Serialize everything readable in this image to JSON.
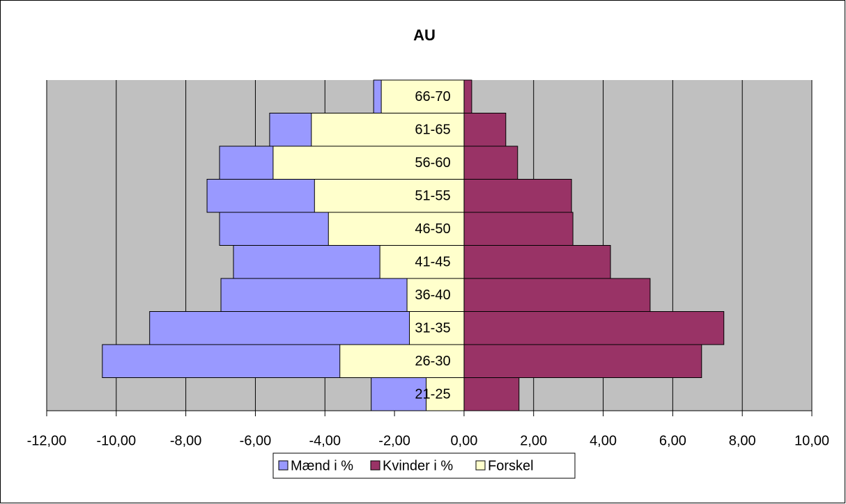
{
  "chart_data": {
    "type": "bar",
    "orientation": "horizontal",
    "title": "AU",
    "categories": [
      "21-25",
      "26-30",
      "31-35",
      "36-40",
      "41-45",
      "46-50",
      "51-55",
      "56-60",
      "61-65",
      "66-70"
    ],
    "series": [
      {
        "name": "Mænd i %",
        "color": "#9999ff",
        "values": [
          -2.67,
          -10.4,
          -9.04,
          -6.99,
          -6.63,
          -7.03,
          -7.39,
          -7.03,
          -5.59,
          -2.6
        ]
      },
      {
        "name": "Kvinder i %",
        "color": "#993366",
        "values": [
          1.58,
          6.83,
          7.47,
          5.35,
          4.21,
          3.13,
          3.09,
          1.54,
          1.2,
          0.22
        ]
      },
      {
        "name": "Forskel",
        "color": "#ffffcc",
        "values": [
          -1.09,
          -3.57,
          -1.57,
          -1.64,
          -2.42,
          -3.9,
          -4.3,
          -5.49,
          -4.39,
          -2.38
        ]
      }
    ],
    "xlim": [
      -12,
      10
    ],
    "xticks": [
      {
        "value": -12,
        "label": "-12,00"
      },
      {
        "value": -10,
        "label": "-10,00"
      },
      {
        "value": -8,
        "label": "-8,00"
      },
      {
        "value": -6,
        "label": "-6,00"
      },
      {
        "value": -4,
        "label": "-4,00"
      },
      {
        "value": -2,
        "label": "-2,00"
      },
      {
        "value": 0,
        "label": "0,00"
      },
      {
        "value": 2,
        "label": "2,00"
      },
      {
        "value": 4,
        "label": "4,00"
      },
      {
        "value": 6,
        "label": "6,00"
      },
      {
        "value": 8,
        "label": "8,00"
      },
      {
        "value": 10,
        "label": "10,00"
      }
    ],
    "grid": true,
    "legend": "bottom"
  }
}
